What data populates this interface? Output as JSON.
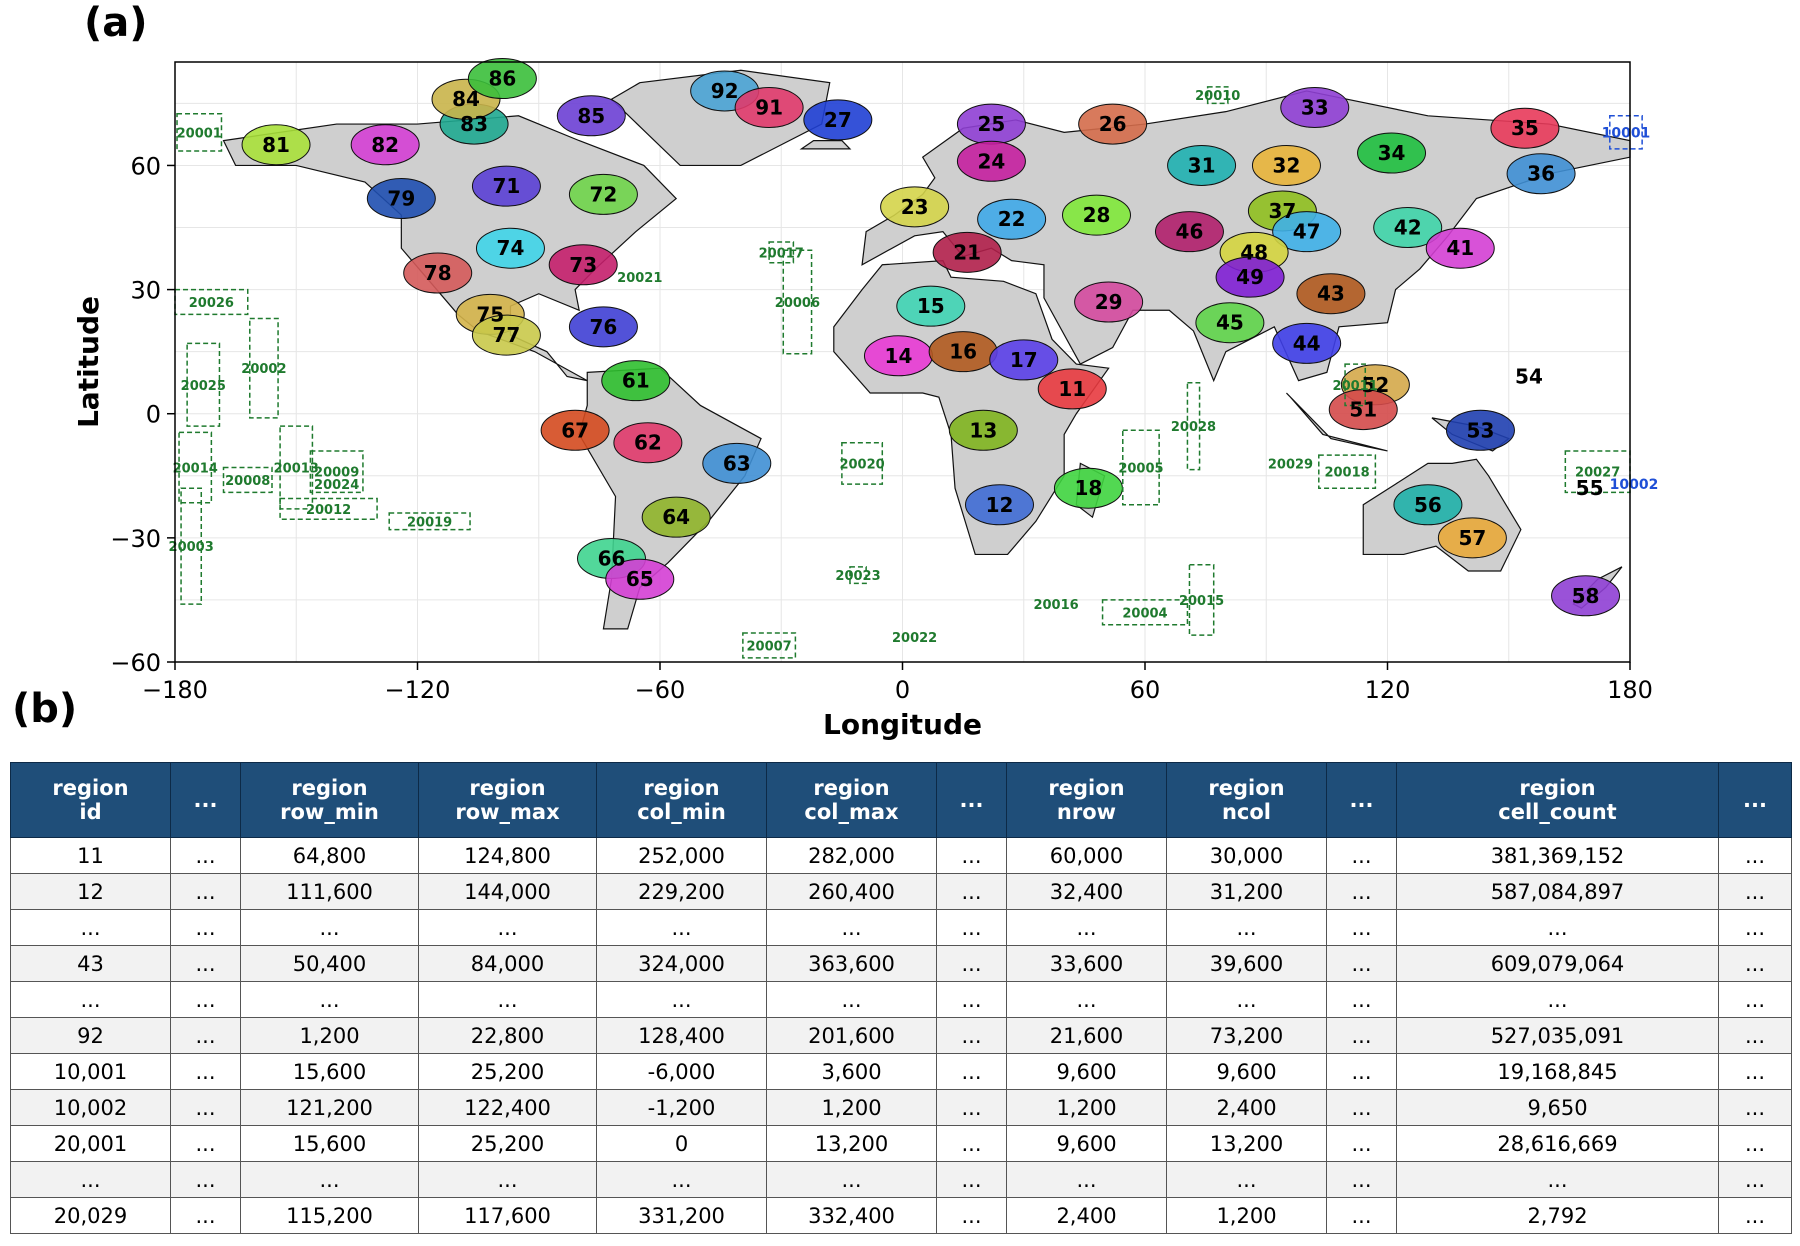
{
  "panel_a_label": "(a)",
  "panel_b_label": "(b)",
  "chart_data": {
    "type": "map",
    "xlabel": "Longitude",
    "ylabel": "Latitude",
    "xlim": [
      -180,
      180
    ],
    "ylim": [
      -60,
      85
    ],
    "xticks": [
      "−180",
      "−120",
      "−60",
      "0",
      "60",
      "120",
      "180"
    ],
    "yticks": [
      "60",
      "30",
      "0",
      "−30",
      "−60"
    ],
    "xtick_values": [
      -180,
      -120,
      -60,
      0,
      60,
      120,
      180
    ],
    "ytick_values": [
      60,
      30,
      0,
      -30,
      -60
    ],
    "regions": [
      {
        "id": "81",
        "lon": -155,
        "lat": 65,
        "color": "#a8e03a"
      },
      {
        "id": "82",
        "lon": -128,
        "lat": 65,
        "color": "#d43fd4"
      },
      {
        "id": "83",
        "lon": -106,
        "lat": 70,
        "color": "#1fa890"
      },
      {
        "id": "84",
        "lon": -108,
        "lat": 76,
        "color": "#c9b44a"
      },
      {
        "id": "86",
        "lon": -99,
        "lat": 81,
        "color": "#3bbf3b"
      },
      {
        "id": "85",
        "lon": -77,
        "lat": 72,
        "color": "#6b3fd4"
      },
      {
        "id": "92",
        "lon": -44,
        "lat": 78,
        "color": "#4aa3d4"
      },
      {
        "id": "91",
        "lon": -33,
        "lat": 74,
        "color": "#e03a6b"
      },
      {
        "id": "27",
        "lon": -16,
        "lat": 71,
        "color": "#1f3fd4"
      },
      {
        "id": "71",
        "lon": -98,
        "lat": 55,
        "color": "#5a3fd4"
      },
      {
        "id": "72",
        "lon": -74,
        "lat": 53,
        "color": "#6fd44a"
      },
      {
        "id": "79",
        "lon": -124,
        "lat": 52,
        "color": "#1f4fb0"
      },
      {
        "id": "74",
        "lon": -97,
        "lat": 40,
        "color": "#3fd4e8"
      },
      {
        "id": "73",
        "lon": -79,
        "lat": 36,
        "color": "#c41f6b"
      },
      {
        "id": "78",
        "lon": -115,
        "lat": 34,
        "color": "#d45a5a"
      },
      {
        "id": "75",
        "lon": -102,
        "lat": 24,
        "color": "#d4b44a"
      },
      {
        "id": "77",
        "lon": -98,
        "lat": 19,
        "color": "#c9c94a"
      },
      {
        "id": "76",
        "lon": -74,
        "lat": 21,
        "color": "#3f3fd4"
      },
      {
        "id": "61",
        "lon": -66,
        "lat": 8,
        "color": "#2fbf2f"
      },
      {
        "id": "67",
        "lon": -81,
        "lat": -4,
        "color": "#d44a1f"
      },
      {
        "id": "62",
        "lon": -63,
        "lat": -7,
        "color": "#e03a6b"
      },
      {
        "id": "63",
        "lon": -41,
        "lat": -12,
        "color": "#3f8fd4"
      },
      {
        "id": "64",
        "lon": -56,
        "lat": -25,
        "color": "#8fb42a"
      },
      {
        "id": "66",
        "lon": -72,
        "lat": -35,
        "color": "#3fd48f"
      },
      {
        "id": "65",
        "lon": -65,
        "lat": -40,
        "color": "#d43fd4"
      },
      {
        "id": "25",
        "lon": 22,
        "lat": 70,
        "color": "#8f3fd4"
      },
      {
        "id": "26",
        "lon": 52,
        "lat": 70,
        "color": "#d46b4a"
      },
      {
        "id": "24",
        "lon": 22,
        "lat": 61,
        "color": "#c41f9f"
      },
      {
        "id": "23",
        "lon": 3,
        "lat": 50,
        "color": "#d4d44a"
      },
      {
        "id": "22",
        "lon": 27,
        "lat": 47,
        "color": "#3fa8e8"
      },
      {
        "id": "21",
        "lon": 16,
        "lat": 39,
        "color": "#b01f4a"
      },
      {
        "id": "28",
        "lon": 48,
        "lat": 48,
        "color": "#7fe83a"
      },
      {
        "id": "31",
        "lon": 74,
        "lat": 60,
        "color": "#1fb0b0"
      },
      {
        "id": "33",
        "lon": 102,
        "lat": 74,
        "color": "#8f3fd4"
      },
      {
        "id": "32",
        "lon": 95,
        "lat": 60,
        "color": "#e8b43a"
      },
      {
        "id": "34",
        "lon": 121,
        "lat": 63,
        "color": "#1fbf3f"
      },
      {
        "id": "35",
        "lon": 154,
        "lat": 69,
        "color": "#e83a5a"
      },
      {
        "id": "36",
        "lon": 158,
        "lat": 58,
        "color": "#3f8fd4"
      },
      {
        "id": "37",
        "lon": 94,
        "lat": 49,
        "color": "#8fbf1f"
      },
      {
        "id": "46",
        "lon": 71,
        "lat": 44,
        "color": "#b01f6b"
      },
      {
        "id": "47",
        "lon": 100,
        "lat": 44,
        "color": "#3fb0e8"
      },
      {
        "id": "48",
        "lon": 87,
        "lat": 39,
        "color": "#d4d43f"
      },
      {
        "id": "49",
        "lon": 86,
        "lat": 33,
        "color": "#7f1fd4"
      },
      {
        "id": "42",
        "lon": 125,
        "lat": 45,
        "color": "#3fd4a8"
      },
      {
        "id": "41",
        "lon": 138,
        "lat": 40,
        "color": "#d43fd4"
      },
      {
        "id": "43",
        "lon": 106,
        "lat": 29,
        "color": "#b05a1f"
      },
      {
        "id": "45",
        "lon": 81,
        "lat": 22,
        "color": "#5fd44a"
      },
      {
        "id": "44",
        "lon": 100,
        "lat": 17,
        "color": "#3f3fe8"
      },
      {
        "id": "15",
        "lon": 7,
        "lat": 26,
        "color": "#3fd4b4"
      },
      {
        "id": "29",
        "lon": 51,
        "lat": 27,
        "color": "#d44a9f"
      },
      {
        "id": "14",
        "lon": -1,
        "lat": 14,
        "color": "#e83ad4"
      },
      {
        "id": "16",
        "lon": 15,
        "lat": 15,
        "color": "#b05a1f"
      },
      {
        "id": "17",
        "lon": 30,
        "lat": 13,
        "color": "#5a3fe8"
      },
      {
        "id": "11",
        "lon": 42,
        "lat": 6,
        "color": "#e83a3f"
      },
      {
        "id": "13",
        "lon": 20,
        "lat": -4,
        "color": "#7fb41f"
      },
      {
        "id": "12",
        "lon": 24,
        "lat": -22,
        "color": "#3f6bd4"
      },
      {
        "id": "18",
        "lon": 46,
        "lat": -18,
        "color": "#3fd43f"
      },
      {
        "id": "52",
        "lon": 117,
        "lat": 7,
        "color": "#d4a84a"
      },
      {
        "id": "51",
        "lon": 114,
        "lat": 1,
        "color": "#d44a4a"
      },
      {
        "id": "53",
        "lon": 143,
        "lat": -4,
        "color": "#1f3fb0"
      },
      {
        "id": "54",
        "lon": 155,
        "lat": 9,
        "color": "#000000"
      },
      {
        "id": "56",
        "lon": 130,
        "lat": -22,
        "color": "#1fb0a8"
      },
      {
        "id": "57",
        "lon": 141,
        "lat": -30,
        "color": "#e8a83a"
      },
      {
        "id": "55",
        "lon": 170,
        "lat": -18,
        "color": "#000000"
      },
      {
        "id": "58",
        "lon": 169,
        "lat": -44,
        "color": "#8f3fd4"
      }
    ],
    "boxes": [
      {
        "id": "20001",
        "lon": -174,
        "lat": 68,
        "w": 11,
        "h": 9,
        "color": "#1f7a2e"
      },
      {
        "id": "10001",
        "lon": 179,
        "lat": 68,
        "w": 8,
        "h": 8,
        "color": "#1f4fd6",
        "blue": true
      },
      {
        "id": "20010",
        "lon": 78,
        "lat": 77,
        "w": 5,
        "h": 4,
        "color": "#1f7a2e"
      },
      {
        "id": "20017",
        "lon": -30,
        "lat": 39,
        "w": 6,
        "h": 5,
        "color": "#1f7a2e"
      },
      {
        "id": "20006",
        "lon": -26,
        "lat": 27,
        "w": 7,
        "h": 25,
        "color": "#1f7a2e"
      },
      {
        "id": "20021",
        "lon": -65,
        "lat": 33,
        "w": 0,
        "h": 0,
        "color": "#1f7a2e"
      },
      {
        "id": "20026",
        "lon": -171,
        "lat": 27,
        "w": 18,
        "h": 6,
        "color": "#1f7a2e"
      },
      {
        "id": "20025",
        "lon": -173,
        "lat": 7,
        "w": 8,
        "h": 20,
        "color": "#1f7a2e"
      },
      {
        "id": "20002",
        "lon": -158,
        "lat": 11,
        "w": 7,
        "h": 24,
        "color": "#1f7a2e"
      },
      {
        "id": "20014",
        "lon": -175,
        "lat": -13,
        "w": 8,
        "h": 17,
        "color": "#1f7a2e"
      },
      {
        "id": "20008",
        "lon": -162,
        "lat": -16,
        "w": 12,
        "h": 6,
        "color": "#1f7a2e"
      },
      {
        "id": "20013",
        "lon": -150,
        "lat": -13,
        "w": 8,
        "h": 20,
        "color": "#1f7a2e"
      },
      {
        "id": "20009",
        "lon": -140,
        "lat": -14,
        "w": 13,
        "h": 10,
        "color": "#1f7a2e"
      },
      {
        "id": "20024",
        "lon": -140,
        "lat": -17,
        "w": 0,
        "h": 0,
        "color": "#1f7a2e"
      },
      {
        "id": "20012",
        "lon": -142,
        "lat": -23,
        "w": 24,
        "h": 5,
        "color": "#1f7a2e"
      },
      {
        "id": "20019",
        "lon": -117,
        "lat": -26,
        "w": 20,
        "h": 4,
        "color": "#1f7a2e"
      },
      {
        "id": "20003",
        "lon": -176,
        "lat": -32,
        "w": 5,
        "h": 28,
        "color": "#1f7a2e"
      },
      {
        "id": "20020",
        "lon": -10,
        "lat": -12,
        "w": 10,
        "h": 10,
        "color": "#1f7a2e"
      },
      {
        "id": "20023",
        "lon": -11,
        "lat": -39,
        "w": 4,
        "h": 4,
        "color": "#1f7a2e"
      },
      {
        "id": "20007",
        "lon": -33,
        "lat": -56,
        "w": 13,
        "h": 6,
        "color": "#1f7a2e"
      },
      {
        "id": "20022",
        "lon": 3,
        "lat": -54,
        "w": 0,
        "h": 0,
        "color": "#1f7a2e"
      },
      {
        "id": "20016",
        "lon": 38,
        "lat": -46,
        "w": 0,
        "h": 0,
        "color": "#1f7a2e"
      },
      {
        "id": "20004",
        "lon": 60,
        "lat": -48,
        "w": 21,
        "h": 6,
        "color": "#1f7a2e"
      },
      {
        "id": "20015",
        "lon": 74,
        "lat": -45,
        "w": 6,
        "h": 17,
        "color": "#1f7a2e"
      },
      {
        "id": "20005",
        "lon": 59,
        "lat": -13,
        "w": 9,
        "h": 18,
        "color": "#1f7a2e"
      },
      {
        "id": "20028",
        "lon": 72,
        "lat": -3,
        "w": 3,
        "h": 21,
        "color": "#1f7a2e"
      },
      {
        "id": "20029",
        "lon": 96,
        "lat": -12,
        "w": 0,
        "h": 0,
        "color": "#1f7a2e"
      },
      {
        "id": "20011",
        "lon": 112,
        "lat": 7,
        "w": 5,
        "h": 10,
        "color": "#1f7a2e"
      },
      {
        "id": "20018",
        "lon": 110,
        "lat": -14,
        "w": 14,
        "h": 8,
        "color": "#1f7a2e"
      },
      {
        "id": "20027",
        "lon": 172,
        "lat": -14,
        "w": 16,
        "h": 10,
        "color": "#1f7a2e"
      },
      {
        "id": "10002",
        "lon": 181,
        "lat": -17,
        "w": 0,
        "h": 0,
        "color": "#1f4fd6",
        "blue": true
      }
    ]
  },
  "table": {
    "headers": [
      [
        "region",
        "id"
      ],
      [
        "...",
        ""
      ],
      [
        "region",
        "row_min"
      ],
      [
        "region",
        "row_max"
      ],
      [
        "region",
        "col_min"
      ],
      [
        "region",
        "col_max"
      ],
      [
        "...",
        ""
      ],
      [
        "region",
        "nrow"
      ],
      [
        "region",
        "ncol"
      ],
      [
        "...",
        ""
      ],
      [
        "region",
        "cell_count"
      ],
      [
        "...",
        ""
      ]
    ],
    "rows": [
      [
        "11",
        "...",
        "64,800",
        "124,800",
        "252,000",
        "282,000",
        "...",
        "60,000",
        "30,000",
        "...",
        "381,369,152",
        "..."
      ],
      [
        "12",
        "...",
        "111,600",
        "144,000",
        "229,200",
        "260,400",
        "...",
        "32,400",
        "31,200",
        "...",
        "587,084,897",
        "..."
      ],
      [
        "...",
        "...",
        "...",
        "...",
        "...",
        "...",
        "...",
        "...",
        "...",
        "...",
        "...",
        "..."
      ],
      [
        "43",
        "...",
        "50,400",
        "84,000",
        "324,000",
        "363,600",
        "...",
        "33,600",
        "39,600",
        "...",
        "609,079,064",
        "..."
      ],
      [
        "...",
        "...",
        "...",
        "...",
        "...",
        "...",
        "...",
        "...",
        "...",
        "...",
        "...",
        "..."
      ],
      [
        "92",
        "...",
        "1,200",
        "22,800",
        "128,400",
        "201,600",
        "...",
        "21,600",
        "73,200",
        "...",
        "527,035,091",
        "..."
      ],
      [
        "10,001",
        "...",
        "15,600",
        "25,200",
        "-6,000",
        "3,600",
        "...",
        "9,600",
        "9,600",
        "...",
        "19,168,845",
        "..."
      ],
      [
        "10,002",
        "...",
        "121,200",
        "122,400",
        "-1,200",
        "1,200",
        "...",
        "1,200",
        "2,400",
        "...",
        "9,650",
        "..."
      ],
      [
        "20,001",
        "...",
        "15,600",
        "25,200",
        "0",
        "13,200",
        "...",
        "9,600",
        "13,200",
        "...",
        "28,616,669",
        "..."
      ],
      [
        "...",
        "...",
        "...",
        "...",
        "...",
        "...",
        "...",
        "...",
        "...",
        "...",
        "...",
        "..."
      ],
      [
        "20,029",
        "...",
        "115,200",
        "117,600",
        "331,200",
        "332,400",
        "...",
        "2,400",
        "1,200",
        "...",
        "2,792",
        "..."
      ]
    ]
  }
}
